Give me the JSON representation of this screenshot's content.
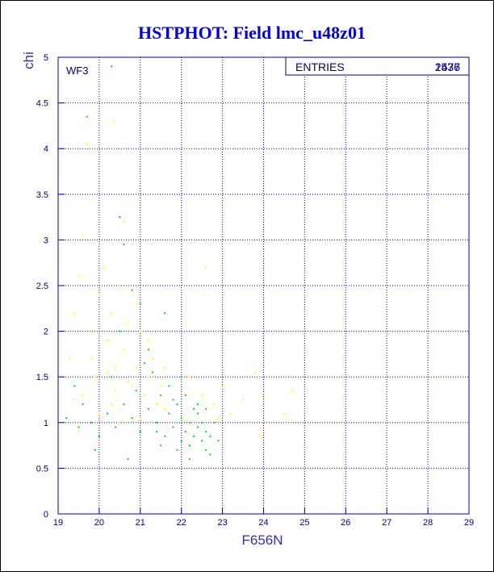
{
  "chart_data": {
    "type": "scatter",
    "title": "HSTPHOT: Field lmc_u48z01",
    "x_label": "F656N",
    "y_label": "chi",
    "annotation": "WF3",
    "stats": {
      "label": "ENTRIES",
      "values": [
        2437,
        1576
      ]
    },
    "xlim": [
      19,
      29
    ],
    "xticks": [
      19,
      20,
      21,
      22,
      23,
      24,
      25,
      26,
      27,
      28,
      29
    ],
    "ylim": [
      0,
      5
    ],
    "yticks": [
      0,
      0.5,
      1,
      1.5,
      2,
      2.5,
      3,
      3.5,
      4,
      4.5,
      5
    ],
    "grid": true,
    "series": [
      {
        "color": "#ffff00",
        "x": [
          19.3,
          19.4,
          19.5,
          19.6,
          19.7,
          19.8,
          19.9,
          20.0,
          20.1,
          20.2,
          20.3,
          20.4,
          20.5,
          20.6,
          20.7,
          20.8,
          20.9,
          21.0,
          21.1,
          21.2,
          21.3,
          21.4,
          21.5,
          21.6,
          21.8,
          22.0,
          22.2,
          22.5,
          22.8,
          23.0,
          23.2,
          23.5,
          23.8,
          24.0,
          24.5,
          24.7,
          22.6,
          20.3,
          19.6,
          20.0,
          20.5,
          21.0,
          19.5,
          20.6,
          20.35,
          20.7,
          21.2,
          20.9,
          19.8,
          22.9,
          23.9,
          20.4,
          21.6,
          20.2,
          19.4
        ],
        "y": [
          1.7,
          2.2,
          2.6,
          3.05,
          4.05,
          2.0,
          1.5,
          2.4,
          2.7,
          1.9,
          2.2,
          1.6,
          2.5,
          1.8,
          2.1,
          1.4,
          1.6,
          2.0,
          1.3,
          1.5,
          1.7,
          1.2,
          1.4,
          1.6,
          1.25,
          1.35,
          1.5,
          1.3,
          1.2,
          1.4,
          1.1,
          1.25,
          1.55,
          1.3,
          1.1,
          1.35,
          2.7,
          1.2,
          1.3,
          1.1,
          1.0,
          1.05,
          0.9,
          3.2,
          4.3,
          1.45,
          1.9,
          2.3,
          1.7,
          1.05,
          0.85,
          1.35,
          1.15,
          1.55,
          1.25
        ]
      },
      {
        "color": "#00e000",
        "x": [
          20.3,
          19.7,
          20.5,
          20.6,
          20.8,
          21.0,
          20.5,
          21.2,
          19.6,
          19.8,
          20.0,
          20.2,
          20.4,
          20.6,
          20.8,
          21.0,
          21.2,
          21.4,
          21.5,
          21.6,
          21.7,
          21.8,
          21.9,
          22.0,
          22.0,
          22.1,
          22.2,
          22.2,
          22.3,
          22.3,
          22.4,
          22.4,
          22.5,
          22.5,
          22.6,
          22.6,
          22.7,
          22.1,
          21.9,
          21.7,
          21.3,
          21.1,
          22.0,
          22.8,
          22.7,
          22.2,
          21.5,
          20.9,
          20.3,
          19.5,
          19.2,
          19.9,
          22.4,
          21.8,
          22.6,
          21.4,
          22.9,
          20.7,
          19.4,
          21.6
        ],
        "y": [
          4.9,
          4.35,
          3.25,
          2.95,
          2.45,
          2.3,
          2.0,
          1.8,
          1.2,
          1.0,
          0.85,
          1.1,
          0.95,
          1.2,
          1.05,
          0.9,
          1.15,
          1.0,
          1.3,
          0.85,
          1.1,
          0.95,
          1.2,
          0.8,
          1.05,
          0.9,
          1.0,
          0.75,
          1.15,
          0.85,
          0.95,
          1.1,
          0.8,
          1.0,
          0.9,
          0.7,
          0.85,
          1.3,
          0.7,
          1.4,
          1.55,
          1.65,
          1.5,
          1.0,
          0.65,
          0.6,
          0.75,
          1.35,
          1.5,
          0.95,
          1.05,
          0.7,
          1.2,
          1.25,
          1.15,
          0.9,
          0.8,
          0.6,
          1.4,
          2.2
        ]
      }
    ]
  }
}
